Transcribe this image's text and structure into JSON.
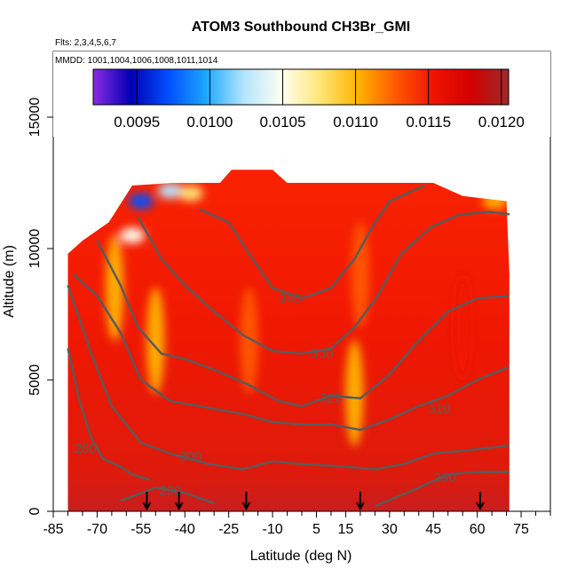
{
  "chart_data": {
    "type": "heatmap",
    "title": "ATOM3 Southbound CH3Br_GMI",
    "flights_note": "Flts: 2,3,4,5,6,7",
    "dates_note": "MMDD: 1001,1004,1006,1008,1011,1014",
    "xlabel": "Latitude (deg N)",
    "ylabel": "Altitude (m)",
    "xlim": [
      -85,
      85
    ],
    "ylim": [
      0,
      17500
    ],
    "x_ticks": [
      -85,
      -70,
      -55,
      -40,
      -25,
      -10,
      5,
      15,
      30,
      45,
      60,
      75
    ],
    "x_minor_ticks": [
      -80,
      -75,
      -65,
      -60,
      -50,
      -45,
      -35,
      -30,
      -20,
      -15,
      -5,
      0,
      10,
      20,
      25,
      35,
      40,
      50,
      55,
      65,
      70,
      80,
      85
    ],
    "y_ticks": [
      0,
      5000,
      10000,
      15000
    ],
    "colorbar": {
      "range": [
        0.0092,
        0.01205
      ],
      "ticks": [
        "0.0095",
        "0.0100",
        "0.0105",
        "0.0110",
        "0.0115",
        "0.0120"
      ],
      "tick_values": [
        0.0095,
        0.01,
        0.0105,
        0.011,
        0.0115,
        0.012
      ],
      "colors": [
        "#8a2be2",
        "#0000b4",
        "#0050ff",
        "#1ea8ff",
        "#b4e6ff",
        "#fffff0",
        "#ffe678",
        "#ffb400",
        "#ff5a00",
        "#f01400",
        "#d20000",
        "#9c2a2a"
      ]
    },
    "field_summary": {
      "lat_extent": [
        -80,
        71
      ],
      "top_altitude_profile": [
        [
          -80,
          9800
        ],
        [
          -75,
          10300
        ],
        [
          -66,
          11000
        ],
        [
          -58,
          12400
        ],
        [
          -44,
          12500
        ],
        [
          -28,
          12500
        ],
        [
          -24,
          13000
        ],
        [
          -10,
          13000
        ],
        [
          -5,
          12500
        ],
        [
          45,
          12500
        ],
        [
          55,
          12000
        ],
        [
          70,
          11800
        ],
        [
          71,
          9000
        ]
      ],
      "low_anomalies": [
        {
          "lat": -55,
          "alt": 11800,
          "value": 0.0098
        },
        {
          "lat": -45,
          "alt": 12200,
          "value": 0.0102
        },
        {
          "lat": -38,
          "alt": 12100,
          "value": 0.0107
        },
        {
          "lat": -58,
          "alt": 10500,
          "value": 0.0106
        },
        {
          "lat": -64,
          "alt": 8500,
          "value": 0.0111
        },
        {
          "lat": -50,
          "alt": 6500,
          "value": 0.0111
        },
        {
          "lat": 18,
          "alt": 4500,
          "value": 0.0111
        },
        {
          "lat": 20,
          "alt": 9000,
          "value": 0.0113
        },
        {
          "lat": -18,
          "alt": 6500,
          "value": 0.0114
        },
        {
          "lat": 55,
          "alt": 7000,
          "value": 0.0115
        },
        {
          "lat": 66,
          "alt": 11800,
          "value": 0.0109
        }
      ]
    },
    "contours": [
      {
        "label": "280",
        "label_lat": -74,
        "label_alt": 2400,
        "points": [
          [
            -80,
            6200
          ],
          [
            -76,
            4200
          ],
          [
            -72,
            2800
          ],
          [
            -68,
            2000
          ],
          [
            -62,
            1700
          ],
          [
            -58,
            1400
          ],
          [
            -52,
            1200
          ]
        ]
      },
      {
        "label": "290",
        "label_lat": -45,
        "label_alt": 800,
        "points": [
          [
            -62,
            400
          ],
          [
            -50,
            900
          ],
          [
            -40,
            700
          ],
          [
            -30,
            300
          ]
        ]
      },
      {
        "label": "290",
        "label_lat": 49,
        "label_alt": 1300,
        "points": [
          [
            25,
            200
          ],
          [
            38,
            800
          ],
          [
            50,
            1400
          ],
          [
            60,
            1500
          ],
          [
            71,
            1500
          ]
        ]
      },
      {
        "label": "300",
        "label_lat": -38,
        "label_alt": 2100,
        "points": [
          [
            -80,
            8600
          ],
          [
            -72,
            6000
          ],
          [
            -65,
            4000
          ],
          [
            -55,
            2600
          ],
          [
            -45,
            2200
          ],
          [
            -32,
            1800
          ],
          [
            -20,
            1600
          ],
          [
            -10,
            1900
          ],
          [
            0,
            1800
          ],
          [
            15,
            1700
          ],
          [
            25,
            1600
          ],
          [
            35,
            1800
          ],
          [
            45,
            2200
          ],
          [
            55,
            2300
          ],
          [
            71,
            2500
          ]
        ]
      },
      {
        "label": "310",
        "label_lat": 47,
        "label_alt": 3900,
        "points": [
          [
            -78,
            9000
          ],
          [
            -70,
            8200
          ],
          [
            -62,
            6800
          ],
          [
            -55,
            5000
          ],
          [
            -45,
            4200
          ],
          [
            -35,
            4000
          ],
          [
            -20,
            3700
          ],
          [
            -10,
            3400
          ],
          [
            0,
            3300
          ],
          [
            10,
            3300
          ],
          [
            20,
            3100
          ],
          [
            30,
            3500
          ],
          [
            40,
            4000
          ],
          [
            50,
            4400
          ],
          [
            60,
            5000
          ],
          [
            71,
            5500
          ]
        ]
      },
      {
        "label": "320",
        "label_lat": 10,
        "label_alt": 4300,
        "points": [
          [
            -70,
            10300
          ],
          [
            -62,
            8600
          ],
          [
            -56,
            7000
          ],
          [
            -48,
            6000
          ],
          [
            -40,
            5800
          ],
          [
            -28,
            5300
          ],
          [
            -18,
            4800
          ],
          [
            -8,
            4200
          ],
          [
            0,
            4000
          ],
          [
            10,
            4400
          ],
          [
            20,
            4300
          ],
          [
            30,
            5200
          ],
          [
            40,
            6500
          ],
          [
            50,
            7600
          ],
          [
            60,
            8100
          ],
          [
            71,
            8200
          ]
        ]
      },
      {
        "label": "330",
        "label_lat": 7,
        "label_alt": 6000,
        "points": [
          [
            -56,
            11200
          ],
          [
            -48,
            9600
          ],
          [
            -40,
            8600
          ],
          [
            -30,
            7600
          ],
          [
            -20,
            6700
          ],
          [
            -10,
            6100
          ],
          [
            0,
            6000
          ],
          [
            10,
            6200
          ],
          [
            18,
            7000
          ],
          [
            26,
            8200
          ],
          [
            34,
            9800
          ],
          [
            44,
            10800
          ],
          [
            54,
            11300
          ],
          [
            64,
            11400
          ],
          [
            71,
            11300
          ]
        ]
      },
      {
        "label": "340",
        "label_lat": -4,
        "label_alt": 8100,
        "points": [
          [
            -35,
            11500
          ],
          [
            -25,
            11000
          ],
          [
            -18,
            9800
          ],
          [
            -10,
            8500
          ],
          [
            0,
            8100
          ],
          [
            10,
            8500
          ],
          [
            18,
            9600
          ],
          [
            24,
            10800
          ],
          [
            30,
            11800
          ],
          [
            42,
            12400
          ]
        ]
      }
    ],
    "flight_arrows_lat": [
      -53,
      -42,
      -19,
      20,
      61
    ]
  }
}
